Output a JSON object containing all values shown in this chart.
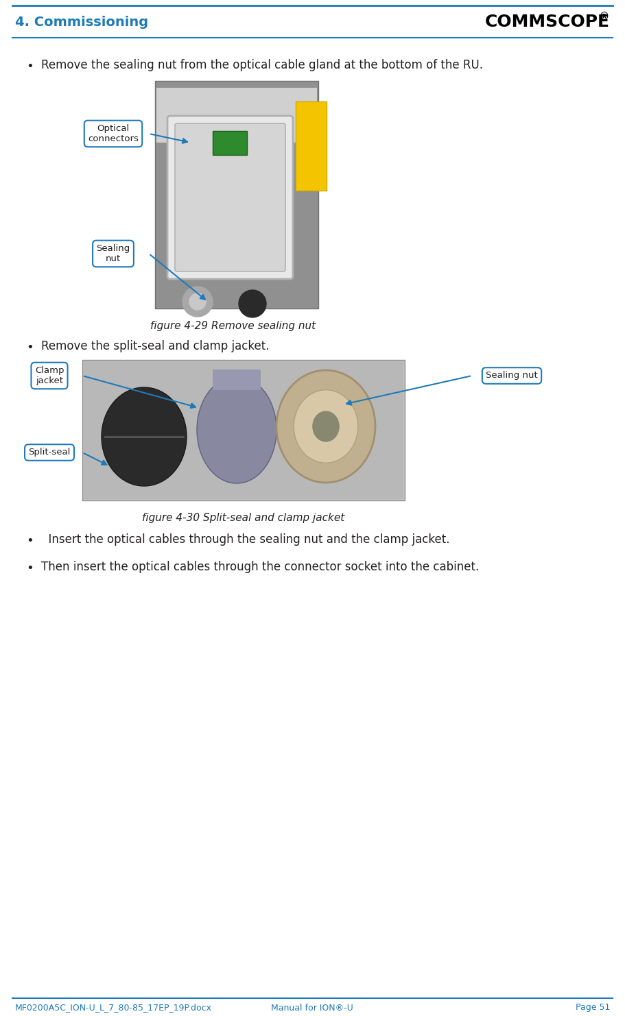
{
  "page_title": "4. Commissioning",
  "title_color": "#1e7ab8",
  "header_line_color": "#1e7ab8",
  "background_color": "#ffffff",
  "bullet1": "Remove the sealing nut from the optical cable gland at the bottom of the RU.",
  "bullet2": "Remove the split-seal and clamp jacket.",
  "bullet3": "  Insert the optical cables through the sealing nut and the clamp jacket.",
  "bullet4": "Then insert the optical cables through the connector socket into the cabinet.",
  "fig1_caption": "figure 4-29 Remove sealing nut",
  "fig2_caption": "figure 4-30 Split-seal and clamp jacket",
  "footer_left": "MF0200A5C_ION-U_L_7_80-85_17EP_19P.docx",
  "footer_mid": "Manual for ION®-U",
  "footer_right": "Page 51",
  "footer_color": "#1e7ab8",
  "text_color": "#231f20",
  "label_box_color": "#ffffff",
  "label_border_color": "#1e7ab8",
  "label_text_color": "#231f20",
  "arrow_color": "#1e7ab8",
  "commscope_color": "#000000",
  "commscope_o_color": "#1e7ab8"
}
